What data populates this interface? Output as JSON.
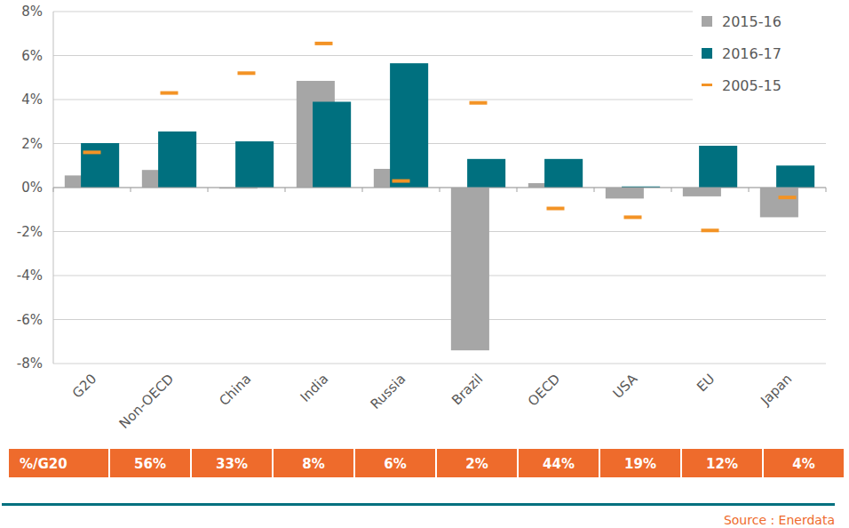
{
  "chart_data": {
    "type": "bar",
    "categories": [
      "G20",
      "Non-OECD",
      "China",
      "India",
      "Russia",
      "Brazil",
      "OECD",
      "USA",
      "EU",
      "Japan"
    ],
    "series": [
      {
        "name": "2015-16",
        "type": "bar",
        "color": "#a6a6a6",
        "values": [
          0.55,
          0.8,
          -0.05,
          4.85,
          0.85,
          -7.4,
          0.2,
          -0.5,
          -0.4,
          -1.35
        ]
      },
      {
        "name": "2016-17",
        "type": "bar",
        "color": "#00707f",
        "values": [
          2.02,
          2.55,
          2.1,
          3.9,
          5.65,
          1.3,
          1.3,
          0.05,
          1.9,
          1.0
        ]
      },
      {
        "name": "2005-15",
        "type": "scatter",
        "marker": "dash",
        "color": "#f39325",
        "values": [
          1.6,
          4.3,
          5.2,
          6.55,
          0.3,
          3.85,
          -0.95,
          -1.35,
          -1.95,
          -0.45
        ]
      }
    ],
    "ylim": [
      -8,
      8
    ],
    "yticks": [
      {
        "value": -8,
        "label": "-8%"
      },
      {
        "value": -6,
        "label": "-6%"
      },
      {
        "value": -4,
        "label": "-4%"
      },
      {
        "value": -2,
        "label": "-2%"
      },
      {
        "value": 0,
        "label": "0%"
      },
      {
        "value": 2,
        "label": "2%"
      },
      {
        "value": 4,
        "label": "4%"
      },
      {
        "value": 6,
        "label": "6%"
      },
      {
        "value": 8,
        "label": "8%"
      }
    ],
    "grid": true,
    "legend": "top-right",
    "share_of_g20": {
      "label": "%/G20",
      "values": [
        56,
        33,
        8,
        6,
        2,
        44,
        19,
        12,
        4
      ],
      "value_labels": [
        "56%",
        "33%",
        "8%",
        "6%",
        "2%",
        "44%",
        "19%",
        "12%",
        "4%"
      ]
    },
    "source": "Source : Enerdata"
  }
}
